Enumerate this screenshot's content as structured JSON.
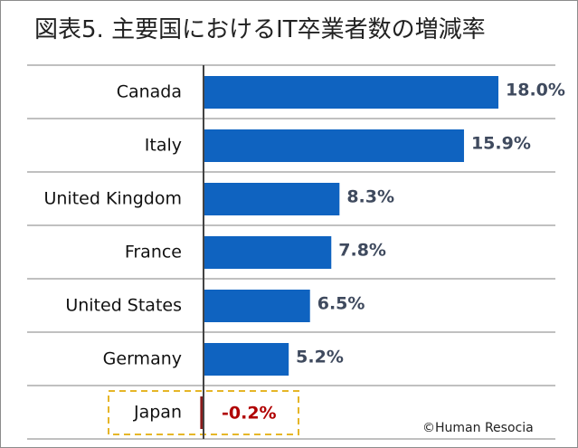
{
  "chart_data": {
    "type": "bar",
    "orientation": "horizontal",
    "title": "図表5. 主要国におけるIT卒業者数の増減率",
    "categories": [
      "Canada",
      "Italy",
      "United Kingdom",
      "France",
      "United States",
      "Germany",
      "Japan"
    ],
    "values": [
      18.0,
      15.9,
      8.3,
      7.8,
      6.5,
      5.2,
      -0.2
    ],
    "value_labels": [
      "18.0%",
      "15.9%",
      "8.3%",
      "7.8%",
      "6.5%",
      "5.2%",
      "-0.2%"
    ],
    "unit": "%",
    "xlim": [
      -0.5,
      18.5
    ],
    "highlight_category": "Japan",
    "colors": {
      "bar": "#0f63c0",
      "negative_bar": "#8b1a1a",
      "label": "#3f4a5e",
      "negative_label": "#b00000",
      "highlight_box": "#e6b628",
      "grid": "#808080",
      "axis": "#444444"
    }
  },
  "credit": "©Human Resocia"
}
